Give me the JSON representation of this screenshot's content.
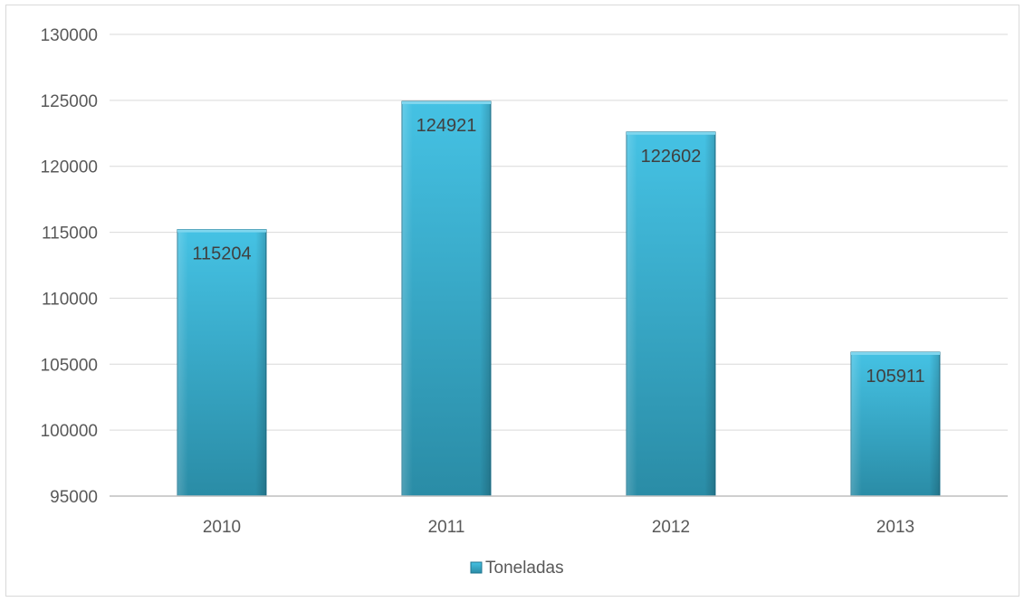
{
  "chart_data": {
    "type": "bar",
    "categories": [
      "2010",
      "2011",
      "2012",
      "2013"
    ],
    "series": [
      {
        "name": "Toneladas",
        "values": [
          115204,
          124921,
          122602,
          105911
        ],
        "data_labels": [
          "115204",
          "124921",
          "122602",
          "105911"
        ]
      }
    ],
    "ylim": [
      95000,
      130000
    ],
    "yticks": [
      "95000",
      "100000",
      "105000",
      "110000",
      "115000",
      "120000",
      "125000",
      "130000"
    ],
    "ytick_values": [
      95000,
      100000,
      105000,
      110000,
      115000,
      120000,
      125000,
      130000
    ],
    "grid": true,
    "legend_position": "bottom",
    "colors": {
      "bar_top": "#45c2e4",
      "bar_bottom": "#2a8ca6",
      "bar_edge": "#1f7690",
      "grid": "#d9d9d9",
      "axis": "#bfbfbf",
      "text": "#595959",
      "label_text": "#404040"
    }
  }
}
